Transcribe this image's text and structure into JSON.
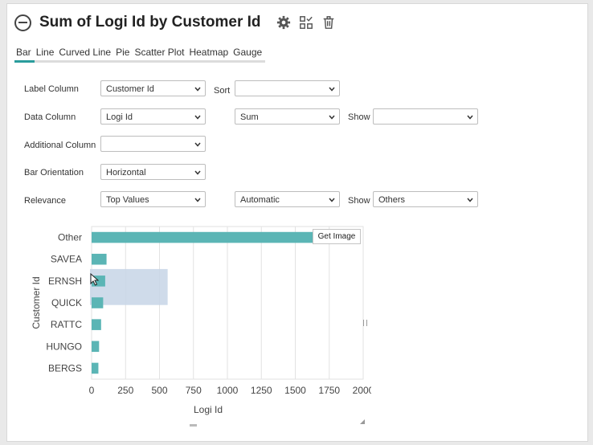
{
  "title": "Sum of Logi Id by Customer Id",
  "tabs": [
    {
      "label": "Bar",
      "active": true
    },
    {
      "label": "Line",
      "active": false
    },
    {
      "label": "Curved Line",
      "active": false
    },
    {
      "label": "Pie",
      "active": false
    },
    {
      "label": "Scatter Plot",
      "active": false
    },
    {
      "label": "Heatmap",
      "active": false
    },
    {
      "label": "Gauge",
      "active": false
    }
  ],
  "form": {
    "label_column": {
      "label": "Label Column",
      "value": "Customer Id"
    },
    "sort": {
      "label": "Sort",
      "value": ""
    },
    "data_column": {
      "label": "Data Column",
      "value": "Logi Id"
    },
    "aggregate": {
      "value": "Sum"
    },
    "show_1": {
      "label": "Show",
      "value": ""
    },
    "additional_column": {
      "label": "Additional Column",
      "value": ""
    },
    "bar_orientation": {
      "label": "Bar Orientation",
      "value": "Horizontal"
    },
    "relevance": {
      "label": "Relevance",
      "value": "Top Values"
    },
    "relevance_mode": {
      "value": "Automatic"
    },
    "show_2": {
      "label": "Show",
      "value": "Others"
    }
  },
  "get_image_label": "Get Image",
  "icons": [
    "collapse-icon",
    "gear-icon",
    "chart-edit-icon",
    "trash-icon",
    "chevron-down-icon"
  ],
  "colors": {
    "bar": "#5bb5b5",
    "accent": "#2a9c9c",
    "selection": "#c7d5e6"
  },
  "chart_data": {
    "type": "bar",
    "orientation": "horizontal",
    "categories": [
      "Other",
      "SAVEA",
      "ERNSH",
      "QUICK",
      "RATTC",
      "HUNGO",
      "BERGS"
    ],
    "values": [
      1650,
      110,
      100,
      85,
      70,
      55,
      50
    ],
    "xlabel": "Logi Id",
    "ylabel": "Customer Id",
    "xlim": [
      0,
      2000
    ],
    "xticks": [
      "0",
      "250",
      "500",
      "750",
      "1000",
      "1250",
      "1500",
      "1750",
      "2000"
    ],
    "grid": true
  }
}
